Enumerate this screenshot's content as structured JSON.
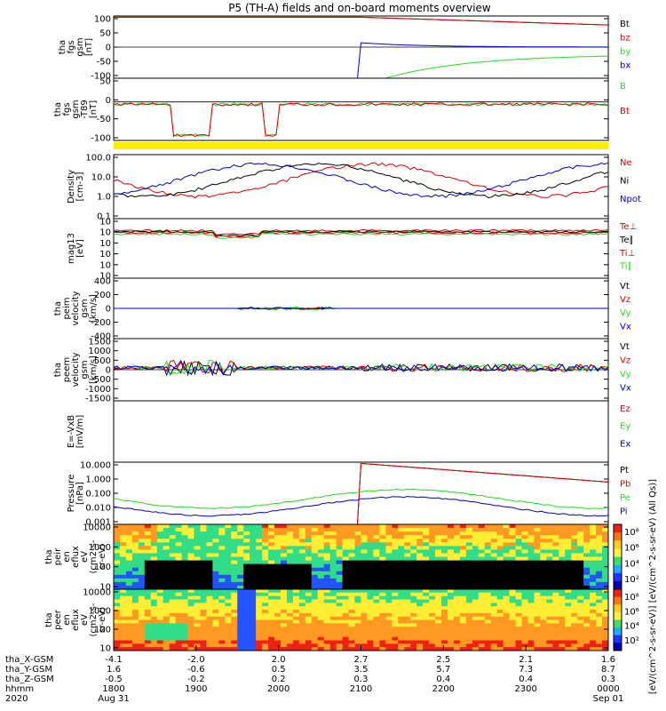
{
  "title": "P5 (TH-A) fields and on-board moments overview",
  "colors": {
    "black": "#000000",
    "red": "#dd0000",
    "green": "#22dd22",
    "blue": "#0000cc",
    "yellow": "#ffee00"
  },
  "chart_data": [
    {
      "type": "line",
      "ylabel": [
        "tha",
        "fgs",
        "gsm",
        "[nT]"
      ],
      "ylim": [
        -100,
        100
      ],
      "yticks": [
        "100",
        "50",
        "0",
        "-50",
        "-100"
      ],
      "legend": [
        {
          "name": "Bt",
          "color": "black"
        },
        {
          "name": "bz",
          "color": "red"
        },
        {
          "name": "by",
          "color": "green"
        },
        {
          "name": "bx",
          "color": "blue"
        }
      ]
    },
    {
      "type": "line",
      "ylabel": [
        "tha",
        "fgs",
        "gsm",
        "-T89",
        "[nT]"
      ],
      "ylim": [
        -130,
        80
      ],
      "yticks": [
        "50",
        "0",
        "-50",
        "-100"
      ],
      "legend": [
        {
          "name": "B",
          "color": "green"
        },
        {
          "name": "Bt",
          "color": "red"
        }
      ]
    },
    {
      "type": "line",
      "ylabel": [
        "Density",
        "[cm-3]"
      ],
      "scale": "log",
      "yticks": [
        "100.0",
        "10.0",
        "1.0",
        "0.1"
      ],
      "legend": [
        {
          "name": "Ne",
          "color": "red"
        },
        {
          "name": "Ni",
          "color": "black"
        },
        {
          "name": "Npot",
          "color": "blue"
        }
      ]
    },
    {
      "type": "line",
      "ylabel": [
        "mag13",
        "[eV]"
      ],
      "scale": "log",
      "yticks": [
        "10",
        "10",
        "10",
        "10",
        "10",
        "10"
      ],
      "legend": [
        {
          "name": "Te⊥",
          "color": "red"
        },
        {
          "name": "Te∥",
          "color": "black"
        },
        {
          "name": "Ti⊥",
          "color": "red"
        },
        {
          "name": "Ti∥",
          "color": "green"
        }
      ]
    },
    {
      "type": "line",
      "ylabel": [
        "tha",
        "peim",
        "velocity",
        "gsm",
        "[km/s]"
      ],
      "ylim": [
        -400,
        400
      ],
      "yticks": [
        "400",
        "200",
        "0",
        "-200",
        "-400"
      ],
      "legend": [
        {
          "name": "Vt",
          "color": "black"
        },
        {
          "name": "Vz",
          "color": "red"
        },
        {
          "name": "Vy",
          "color": "green"
        },
        {
          "name": "Vx",
          "color": "blue"
        }
      ]
    },
    {
      "type": "line",
      "ylabel": [
        "tha",
        "peem",
        "velocity",
        "gsm",
        "[km/s]"
      ],
      "ylim": [
        -1500,
        1500
      ],
      "yticks": [
        "1500",
        "1000",
        "500",
        "0",
        "-500",
        "-1000",
        "-1500"
      ],
      "legend": [
        {
          "name": "Vt",
          "color": "black"
        },
        {
          "name": "Vz",
          "color": "red"
        },
        {
          "name": "Vy",
          "color": "green"
        },
        {
          "name": "Vx",
          "color": "blue"
        }
      ]
    },
    {
      "type": "line",
      "ylabel": [
        "E=-VxB",
        "[mV/m]"
      ],
      "yticks": [],
      "legend": [
        {
          "name": "Ez",
          "color": "red"
        },
        {
          "name": "Ey",
          "color": "green"
        },
        {
          "name": "Ex",
          "color": "blue"
        }
      ]
    },
    {
      "type": "line",
      "ylabel": [
        "Pressure",
        "[nPa]"
      ],
      "scale": "log",
      "yticks": [
        "10.000",
        "1.000",
        "0.100",
        "0.010",
        "0.001"
      ],
      "legend": [
        {
          "name": "Pt",
          "color": "black"
        },
        {
          "name": "Pb",
          "color": "red"
        },
        {
          "name": "Pe",
          "color": "green"
        },
        {
          "name": "Pi",
          "color": "blue"
        }
      ]
    },
    {
      "type": "heatmap",
      "ylabel": [
        "tha",
        "peir",
        "en",
        "eflux",
        "eV",
        "(cm2-s-",
        "sr-eV)"
      ],
      "yticks": [
        "10000",
        "1000",
        "100",
        "10"
      ],
      "colorbar_ticks": [
        "10⁸",
        "10⁶",
        "10⁴",
        "10²"
      ]
    },
    {
      "type": "heatmap",
      "ylabel": [
        "tha",
        "peer",
        "en",
        "eflux",
        "eV",
        "(cm2-s-",
        "sr-eV)"
      ],
      "yticks": [
        "10000",
        "1000",
        "100",
        "10"
      ],
      "colorbar_ticks": [
        "10⁸",
        "10⁶",
        "10⁴",
        "10²"
      ]
    }
  ],
  "colorbar_label": "[eV/(cm^2-s-sr-eV)] [eV/(cm^2-s-sr-eV) (All Qs)]",
  "footer": {
    "row_labels": [
      "tha_X-GSM",
      "tha_Y-GSM",
      "tha_Z-GSM",
      "hhmm",
      "2020"
    ],
    "columns": [
      [
        "-4.1",
        "1.6",
        "-0.5",
        "1800",
        "Aug 31"
      ],
      [
        "-2.0",
        "-0.6",
        "-0.2",
        "1900",
        ""
      ],
      [
        "2.0",
        "0.5",
        "0.2",
        "2000",
        ""
      ],
      [
        "2.7",
        "3.5",
        "0.3",
        "2100",
        ""
      ],
      [
        "2.5",
        "5.7",
        "0.4",
        "2200",
        ""
      ],
      [
        "2.1",
        "7.3",
        "0.4",
        "2300",
        ""
      ],
      [
        "1.6",
        "8.7",
        "0.3",
        "0000",
        "Sep 01"
      ]
    ]
  }
}
